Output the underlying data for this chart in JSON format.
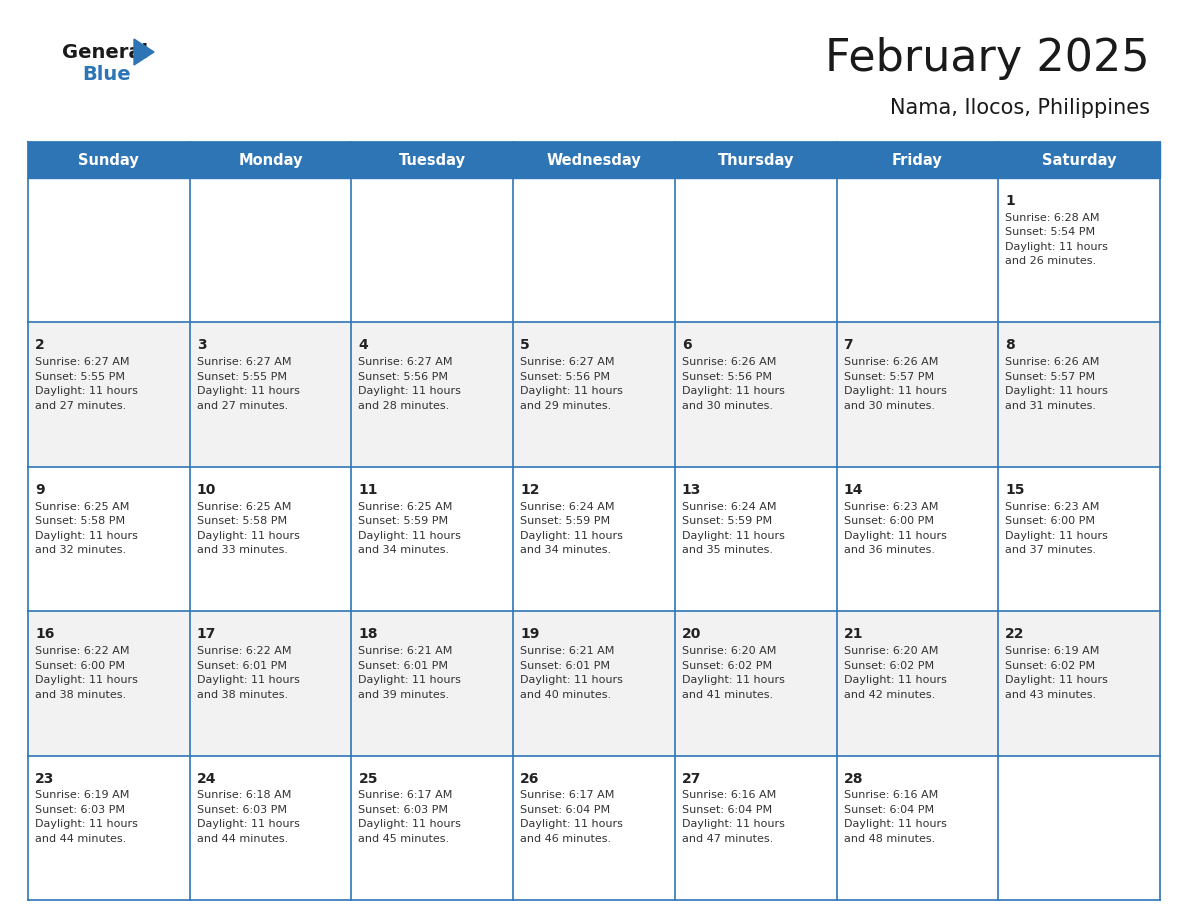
{
  "title": "February 2025",
  "subtitle": "Nama, Ilocos, Philippines",
  "header_bg": "#2E75B6",
  "header_text_color": "#FFFFFF",
  "cell_bg_white": "#FFFFFF",
  "cell_bg_light": "#F2F2F2",
  "day_headers": [
    "Sunday",
    "Monday",
    "Tuesday",
    "Wednesday",
    "Thursday",
    "Friday",
    "Saturday"
  ],
  "days": [
    {
      "day": 1,
      "col": 6,
      "row": 0,
      "sunrise": "6:28 AM",
      "sunset": "5:54 PM",
      "daylight": "11 hours and 26 minutes."
    },
    {
      "day": 2,
      "col": 0,
      "row": 1,
      "sunrise": "6:27 AM",
      "sunset": "5:55 PM",
      "daylight": "11 hours and 27 minutes."
    },
    {
      "day": 3,
      "col": 1,
      "row": 1,
      "sunrise": "6:27 AM",
      "sunset": "5:55 PM",
      "daylight": "11 hours and 27 minutes."
    },
    {
      "day": 4,
      "col": 2,
      "row": 1,
      "sunrise": "6:27 AM",
      "sunset": "5:56 PM",
      "daylight": "11 hours and 28 minutes."
    },
    {
      "day": 5,
      "col": 3,
      "row": 1,
      "sunrise": "6:27 AM",
      "sunset": "5:56 PM",
      "daylight": "11 hours and 29 minutes."
    },
    {
      "day": 6,
      "col": 4,
      "row": 1,
      "sunrise": "6:26 AM",
      "sunset": "5:56 PM",
      "daylight": "11 hours and 30 minutes."
    },
    {
      "day": 7,
      "col": 5,
      "row": 1,
      "sunrise": "6:26 AM",
      "sunset": "5:57 PM",
      "daylight": "11 hours and 30 minutes."
    },
    {
      "day": 8,
      "col": 6,
      "row": 1,
      "sunrise": "6:26 AM",
      "sunset": "5:57 PM",
      "daylight": "11 hours and 31 minutes."
    },
    {
      "day": 9,
      "col": 0,
      "row": 2,
      "sunrise": "6:25 AM",
      "sunset": "5:58 PM",
      "daylight": "11 hours and 32 minutes."
    },
    {
      "day": 10,
      "col": 1,
      "row": 2,
      "sunrise": "6:25 AM",
      "sunset": "5:58 PM",
      "daylight": "11 hours and 33 minutes."
    },
    {
      "day": 11,
      "col": 2,
      "row": 2,
      "sunrise": "6:25 AM",
      "sunset": "5:59 PM",
      "daylight": "11 hours and 34 minutes."
    },
    {
      "day": 12,
      "col": 3,
      "row": 2,
      "sunrise": "6:24 AM",
      "sunset": "5:59 PM",
      "daylight": "11 hours and 34 minutes."
    },
    {
      "day": 13,
      "col": 4,
      "row": 2,
      "sunrise": "6:24 AM",
      "sunset": "5:59 PM",
      "daylight": "11 hours and 35 minutes."
    },
    {
      "day": 14,
      "col": 5,
      "row": 2,
      "sunrise": "6:23 AM",
      "sunset": "6:00 PM",
      "daylight": "11 hours and 36 minutes."
    },
    {
      "day": 15,
      "col": 6,
      "row": 2,
      "sunrise": "6:23 AM",
      "sunset": "6:00 PM",
      "daylight": "11 hours and 37 minutes."
    },
    {
      "day": 16,
      "col": 0,
      "row": 3,
      "sunrise": "6:22 AM",
      "sunset": "6:00 PM",
      "daylight": "11 hours and 38 minutes."
    },
    {
      "day": 17,
      "col": 1,
      "row": 3,
      "sunrise": "6:22 AM",
      "sunset": "6:01 PM",
      "daylight": "11 hours and 38 minutes."
    },
    {
      "day": 18,
      "col": 2,
      "row": 3,
      "sunrise": "6:21 AM",
      "sunset": "6:01 PM",
      "daylight": "11 hours and 39 minutes."
    },
    {
      "day": 19,
      "col": 3,
      "row": 3,
      "sunrise": "6:21 AM",
      "sunset": "6:01 PM",
      "daylight": "11 hours and 40 minutes."
    },
    {
      "day": 20,
      "col": 4,
      "row": 3,
      "sunrise": "6:20 AM",
      "sunset": "6:02 PM",
      "daylight": "11 hours and 41 minutes."
    },
    {
      "day": 21,
      "col": 5,
      "row": 3,
      "sunrise": "6:20 AM",
      "sunset": "6:02 PM",
      "daylight": "11 hours and 42 minutes."
    },
    {
      "day": 22,
      "col": 6,
      "row": 3,
      "sunrise": "6:19 AM",
      "sunset": "6:02 PM",
      "daylight": "11 hours and 43 minutes."
    },
    {
      "day": 23,
      "col": 0,
      "row": 4,
      "sunrise": "6:19 AM",
      "sunset": "6:03 PM",
      "daylight": "11 hours and 44 minutes."
    },
    {
      "day": 24,
      "col": 1,
      "row": 4,
      "sunrise": "6:18 AM",
      "sunset": "6:03 PM",
      "daylight": "11 hours and 44 minutes."
    },
    {
      "day": 25,
      "col": 2,
      "row": 4,
      "sunrise": "6:17 AM",
      "sunset": "6:03 PM",
      "daylight": "11 hours and 45 minutes."
    },
    {
      "day": 26,
      "col": 3,
      "row": 4,
      "sunrise": "6:17 AM",
      "sunset": "6:04 PM",
      "daylight": "11 hours and 46 minutes."
    },
    {
      "day": 27,
      "col": 4,
      "row": 4,
      "sunrise": "6:16 AM",
      "sunset": "6:04 PM",
      "daylight": "11 hours and 47 minutes."
    },
    {
      "day": 28,
      "col": 5,
      "row": 4,
      "sunrise": "6:16 AM",
      "sunset": "6:04 PM",
      "daylight": "11 hours and 48 minutes."
    }
  ],
  "num_rows": 5,
  "num_cols": 7,
  "logo_general_color": "#1a1a1a",
  "logo_blue_color": "#2E75B6",
  "border_color": "#2E75B6",
  "title_fontsize": 32,
  "subtitle_fontsize": 15,
  "header_fontsize": 10.5,
  "day_num_fontsize": 10,
  "cell_text_fontsize": 8
}
